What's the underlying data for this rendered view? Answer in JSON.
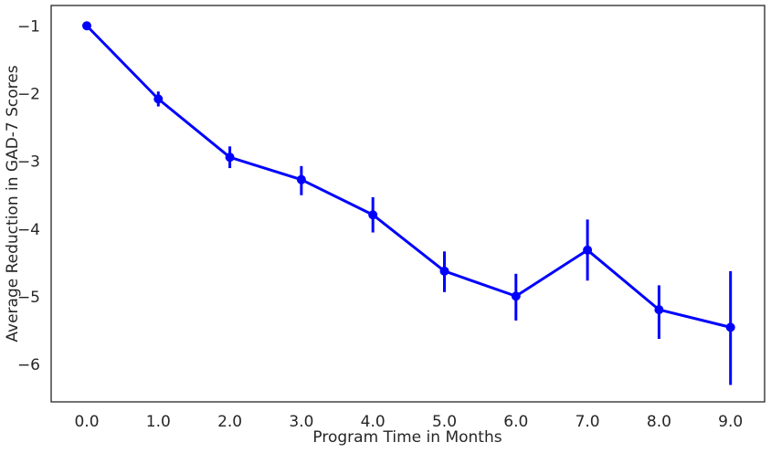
{
  "chart_data": {
    "type": "line",
    "title": "",
    "xlabel": "Program Time in Months",
    "ylabel": "Average Reduction in GAD-7 Scores",
    "x_tick_labels": [
      "0.0",
      "1.0",
      "2.0",
      "3.0",
      "4.0",
      "5.0",
      "6.0",
      "7.0",
      "8.0",
      "9.0"
    ],
    "y_ticks": [
      -1,
      -2,
      -3,
      -4,
      -5,
      -6
    ],
    "y_tick_labels": [
      "−1",
      "−2",
      "−3",
      "−4",
      "−5",
      "−6"
    ],
    "ylim": [
      -6.55,
      -0.7
    ],
    "grid": false,
    "series": [
      {
        "color": "#0000ff",
        "x": [
          0,
          1,
          2,
          3,
          4,
          5,
          6,
          7,
          8,
          9
        ],
        "values": [
          -1.0,
          -2.08,
          -2.94,
          -3.27,
          -3.79,
          -4.62,
          -4.99,
          -4.31,
          -5.19,
          -5.45
        ],
        "error_low": [
          -1.06,
          -2.19,
          -3.1,
          -3.5,
          -4.05,
          -4.93,
          -5.35,
          -4.76,
          -5.62,
          -6.3
        ],
        "error_high": [
          -0.95,
          -1.97,
          -2.78,
          -3.07,
          -3.53,
          -4.33,
          -4.66,
          -3.86,
          -4.83,
          -4.62
        ]
      }
    ]
  }
}
